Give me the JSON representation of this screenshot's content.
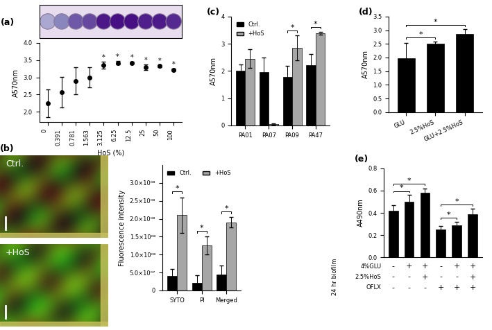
{
  "chart_data": [
    {
      "panel": "(a)",
      "type": "scatter",
      "x_label": "HoS (%)",
      "y_label": "A570nm",
      "categories": [
        "0",
        "0.391",
        "0.781",
        "1.563",
        "3.125",
        "6.25",
        "12.5",
        "25",
        "50",
        "100"
      ],
      "values": [
        2.25,
        2.57,
        2.9,
        3.0,
        3.35,
        3.42,
        3.42,
        3.3,
        3.33,
        3.22
      ],
      "errors": [
        0.4,
        0.45,
        0.4,
        0.3,
        0.1,
        0.05,
        0.03,
        0.08,
        0.03,
        0.03
      ],
      "significance": [
        null,
        null,
        null,
        null,
        "*",
        "*",
        "*",
        "*",
        "*",
        "*"
      ],
      "color": "#000000",
      "marker": "circle",
      "ylim": [
        1.7,
        4.0
      ],
      "yticks": [
        {
          "value": 2,
          "label": "2.0"
        },
        {
          "value": 2.5,
          "label": "2.5"
        },
        {
          "value": 3,
          "label": "3.0"
        },
        {
          "value": 3.5,
          "label": "3.5"
        },
        {
          "value": 4,
          "label": "4.0"
        }
      ]
    },
    {
      "panel": "(b)",
      "type": "bar",
      "image_labels": [
        "Ctrl.",
        "+HoS"
      ],
      "y_label": "Fluorescence intensity",
      "categories": [
        "SYTO",
        "PI",
        "Merged"
      ],
      "series": [
        {
          "name": "Ctrl.",
          "color": "#000000",
          "values": [
            40000000,
            22000000,
            45000000
          ],
          "errors": [
            20000000,
            20000000,
            25000000
          ]
        },
        {
          "name": "+HoS",
          "color": "#a6a6a6",
          "values": [
            210000000,
            125000000,
            190000000
          ],
          "errors": [
            50000000,
            25000000,
            15000000
          ]
        }
      ],
      "significance": [
        "*",
        "*",
        "*"
      ],
      "legend": "upper left",
      "ylim": [
        0,
        350000000
      ],
      "yticks": [
        0,
        {
          "value": 50000000,
          "label": "5.0×10⁰⁷"
        },
        {
          "value": 100000000,
          "label": "1.0×10⁰⁸"
        },
        {
          "value": 150000000,
          "label": "1.5×10⁰⁸"
        },
        {
          "value": 200000000,
          "label": "2.0×10⁰⁸"
        },
        {
          "value": 250000000,
          "label": "2.5×10⁰⁸"
        },
        {
          "value": 300000000,
          "label": "3.0×10⁰⁸"
        }
      ]
    },
    {
      "panel": "(c)",
      "type": "bar",
      "y_label": "A570nm",
      "categories": [
        "PA01",
        "PA07",
        "PA09",
        "PA47"
      ],
      "series": [
        {
          "name": "Ctrl.",
          "color": "#000000",
          "values": [
            2.0,
            1.95,
            1.78,
            2.22
          ],
          "errors": [
            0.25,
            0.55,
            0.4,
            0.4
          ]
        },
        {
          "name": "+HoS",
          "color": "#a6a6a6",
          "values": [
            2.45,
            0.05,
            2.85,
            3.38
          ],
          "errors": [
            0.35,
            0.02,
            0.45,
            0.05
          ]
        }
      ],
      "significance": [
        null,
        null,
        "*",
        "*"
      ],
      "legend": "upper left",
      "ylim": [
        0,
        4
      ],
      "yticks": [
        0,
        1,
        2,
        3,
        4
      ]
    },
    {
      "panel": "(d)",
      "type": "bar",
      "y_label": "A570nm",
      "categories": [
        "GLU",
        "2.5%HoS",
        "GLU+2.5%HoS"
      ],
      "values": [
        1.97,
        2.5,
        2.85
      ],
      "errors": [
        0.55,
        0.08,
        0.18
      ],
      "color": "#000000",
      "comparisons": [
        {
          "pair": [
            0,
            1
          ],
          "label": "*"
        },
        {
          "pair": [
            0,
            2
          ],
          "label": "*"
        }
      ],
      "ylim": [
        0,
        3.5
      ],
      "yticks": [
        {
          "value": 0,
          "label": "0.0"
        },
        {
          "value": 0.5,
          "label": "0.5"
        },
        {
          "value": 1,
          "label": "1.0"
        },
        {
          "value": 1.5,
          "label": "1.5"
        },
        {
          "value": 2,
          "label": "2.0"
        },
        {
          "value": 2.5,
          "label": "2.5"
        },
        {
          "value": 3,
          "label": "3.0"
        },
        {
          "value": 3.5,
          "label": "3.5"
        }
      ]
    },
    {
      "panel": "(e)",
      "type": "bar",
      "y_label": "A490nm",
      "categories": [
        null,
        null,
        null,
        null,
        null,
        null
      ],
      "values": [
        0.42,
        0.5,
        0.58,
        0.25,
        0.29,
        0.39
      ],
      "errors": [
        0.05,
        0.06,
        0.04,
        0.03,
        0.03,
        0.05
      ],
      "color": "#000000",
      "comparisons": [
        {
          "pair": [
            0,
            1
          ],
          "label": "*"
        },
        {
          "pair": [
            0,
            2
          ],
          "label": "*"
        },
        {
          "pair": [
            3,
            4
          ],
          "label": "*"
        },
        {
          "pair": [
            3,
            5
          ],
          "label": "*"
        }
      ],
      "row_group_label": "24 hr biofilm",
      "rows": [
        {
          "label": "4%GLU",
          "marks": [
            "-",
            "+",
            "+",
            "-",
            "+",
            "+"
          ]
        },
        {
          "label": "2.5%HoS",
          "marks": [
            "-",
            "-",
            "+",
            "-",
            "-",
            "+"
          ]
        },
        {
          "label": "OFLX",
          "marks": [
            "-",
            "-",
            "-",
            "+",
            "+",
            "+"
          ]
        }
      ],
      "ylim": [
        0,
        0.8
      ],
      "yticks": [
        {
          "value": 0,
          "label": "0.0"
        },
        {
          "value": 0.2,
          "label": "0.2"
        },
        {
          "value": 0.4,
          "label": "0.4"
        },
        {
          "value": 0.6,
          "label": "0.6"
        },
        {
          "value": 0.8,
          "label": "0.8"
        }
      ]
    }
  ]
}
